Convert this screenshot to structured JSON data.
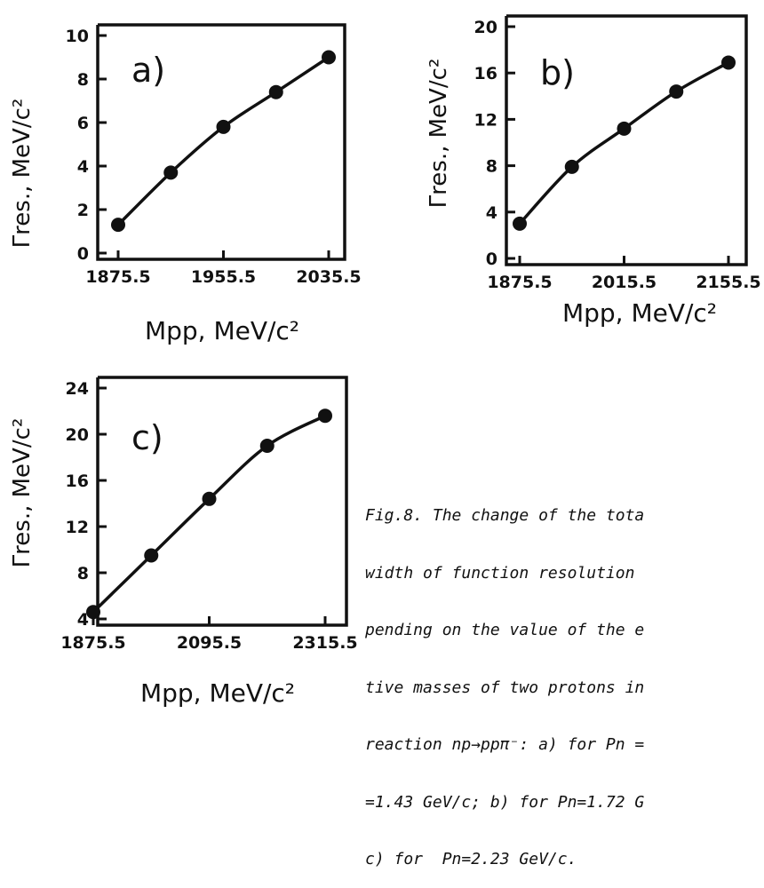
{
  "figure": {
    "caption_lines": [
      "Fig.8. The change of the tota",
      "width of function resolution",
      "pending on the value of the e",
      "tive masses of two protons in",
      "reaction np→ppπ⁻: a) for Pn =",
      "=1.43 GeV/c; b) for Pn=1.72 G",
      "c) for  Pn=2.23 GeV/c."
    ]
  },
  "chart_data": [
    {
      "type": "line",
      "panel_label": "a)",
      "xlabel": "Mpp, MeV/c²",
      "ylabel": "Γres., MeV/c²",
      "xticks": [
        1875.5,
        1955.5,
        2035.5
      ],
      "yticks": [
        0,
        2,
        4,
        6,
        8,
        10
      ],
      "xlim": [
        1875.5,
        2035.5
      ],
      "ylim": [
        0,
        10
      ],
      "markers": true,
      "grid": false,
      "x": [
        1875.5,
        1915.5,
        1955.5,
        1995.5,
        2035.5
      ],
      "y": [
        1.3,
        3.7,
        5.8,
        7.4,
        9.0
      ]
    },
    {
      "type": "line",
      "panel_label": "b)",
      "xlabel": "Mpp, MeV/c²",
      "ylabel": "Γres., MeV/c²",
      "xticks": [
        1875.5,
        2015.5,
        2155.5
      ],
      "yticks": [
        0,
        4,
        8,
        12,
        16,
        20
      ],
      "xlim": [
        1875.5,
        2155.5
      ],
      "ylim": [
        0,
        20
      ],
      "markers": true,
      "grid": false,
      "x": [
        1875.5,
        1945.5,
        2015.5,
        2085.5,
        2155.5
      ],
      "y": [
        3.0,
        7.9,
        11.2,
        14.4,
        16.9
      ]
    },
    {
      "type": "line",
      "panel_label": "c)",
      "xlabel": "Mpp, MeV/c²",
      "ylabel": "Γres., MeV/c²",
      "xticks": [
        1875.5,
        2095.5,
        2315.5
      ],
      "yticks": [
        4,
        8,
        12,
        16,
        20,
        24
      ],
      "xlim": [
        1875.5,
        2315.5
      ],
      "ylim": [
        4,
        24
      ],
      "markers": true,
      "grid": false,
      "x": [
        1875.5,
        1985.5,
        2095.5,
        2205.5,
        2315.5
      ],
      "y": [
        4.6,
        9.5,
        14.4,
        19.0,
        21.6
      ]
    }
  ]
}
